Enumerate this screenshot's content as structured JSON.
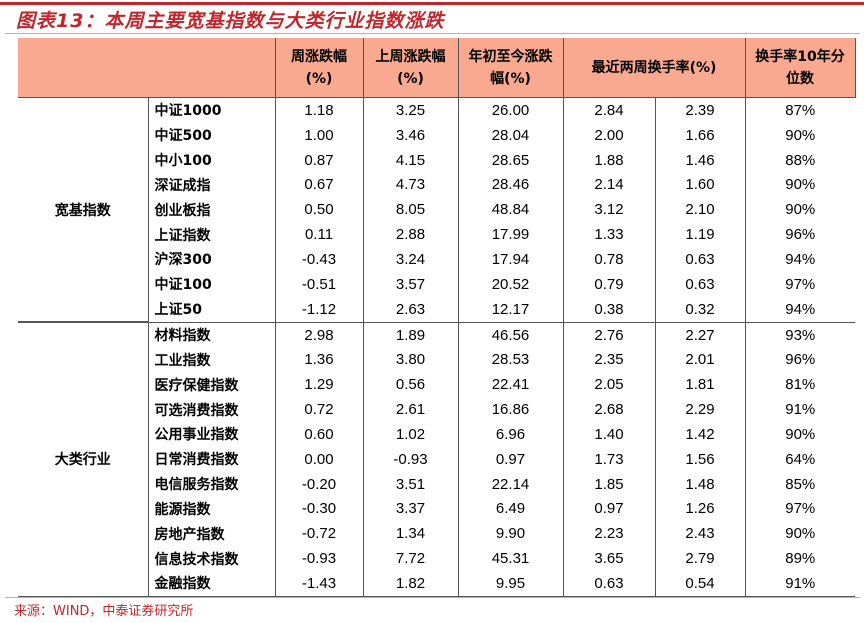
{
  "title": "图表13：本周主要宽基指数与大类行业指数涨跌",
  "headers": [
    "周涨跌幅(%)",
    "上周涨跌幅(%)",
    "年初至今涨跌幅(%)",
    "最近两周换手率(%)",
    "换手率10年分位数"
  ],
  "groups": [
    {
      "label": "宽基指数",
      "rows": [
        [
          "中证1000",
          "1.18",
          "3.25",
          "26.00",
          "2.84",
          "2.39",
          "87%"
        ],
        [
          "中证500",
          "1.00",
          "3.46",
          "28.04",
          "2.00",
          "1.66",
          "90%"
        ],
        [
          "中小100",
          "0.87",
          "4.15",
          "28.65",
          "1.88",
          "1.46",
          "88%"
        ],
        [
          "深证成指",
          "0.67",
          "4.73",
          "28.46",
          "2.14",
          "1.60",
          "90%"
        ],
        [
          "创业板指",
          "0.50",
          "8.05",
          "48.84",
          "3.12",
          "2.10",
          "90%"
        ],
        [
          "上证指数",
          "0.11",
          "2.88",
          "17.99",
          "1.33",
          "1.19",
          "96%"
        ],
        [
          "沪深300",
          "-0.43",
          "3.24",
          "17.94",
          "0.78",
          "0.63",
          "94%"
        ],
        [
          "中证100",
          "-0.51",
          "3.57",
          "20.52",
          "0.79",
          "0.63",
          "97%"
        ],
        [
          "上证50",
          "-1.12",
          "2.63",
          "12.17",
          "0.38",
          "0.32",
          "94%"
        ]
      ]
    },
    {
      "label": "大类行业",
      "rows": [
        [
          "材料指数",
          "2.98",
          "1.89",
          "46.56",
          "2.76",
          "2.27",
          "93%"
        ],
        [
          "工业指数",
          "1.36",
          "3.80",
          "28.53",
          "2.35",
          "2.01",
          "96%"
        ],
        [
          "医疗保健指数",
          "1.29",
          "0.56",
          "22.41",
          "2.05",
          "1.81",
          "81%"
        ],
        [
          "可选消费指数",
          "0.72",
          "2.61",
          "16.86",
          "2.68",
          "2.29",
          "91%"
        ],
        [
          "公用事业指数",
          "0.60",
          "1.02",
          "6.96",
          "1.40",
          "1.42",
          "90%"
        ],
        [
          "日常消费指数",
          "0.00",
          "-0.93",
          "0.97",
          "1.73",
          "1.56",
          "64%"
        ],
        [
          "电信服务指数",
          "-0.20",
          "3.51",
          "22.14",
          "1.85",
          "1.48",
          "85%"
        ],
        [
          "能源指数",
          "-0.30",
          "3.37",
          "6.49",
          "0.97",
          "1.26",
          "97%"
        ],
        [
          "房地产指数",
          "-0.72",
          "1.34",
          "9.90",
          "2.23",
          "2.43",
          "90%"
        ],
        [
          "信息技术指数",
          "-0.93",
          "7.72",
          "45.31",
          "3.65",
          "2.79",
          "89%"
        ],
        [
          "金融指数",
          "-1.43",
          "1.82",
          "9.95",
          "0.63",
          "0.54",
          "91%"
        ]
      ]
    }
  ],
  "source": "来源：WIND，中泰证券研究所"
}
